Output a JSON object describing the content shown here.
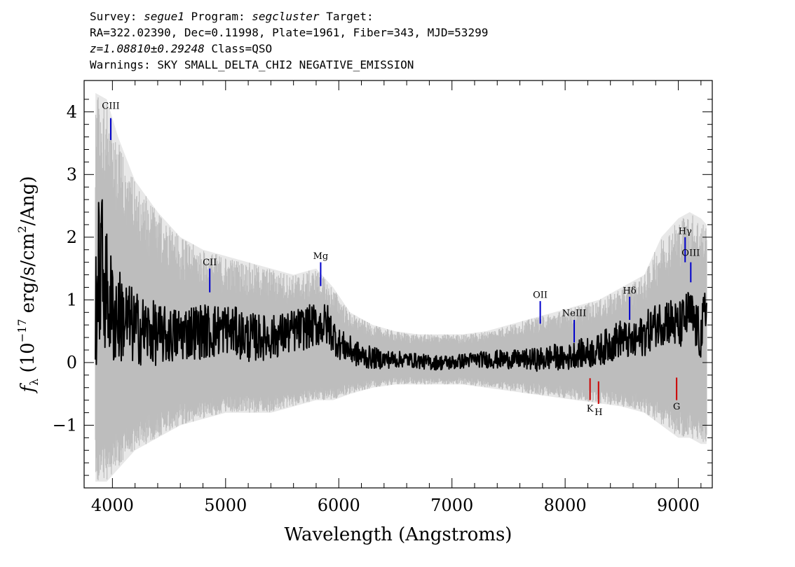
{
  "header": {
    "survey_label": "Survey:",
    "survey": "segue1",
    "program_label": "Program:",
    "program": "segcluster",
    "target_label": "Target:",
    "coords": "RA=322.02390, Dec=0.11998, Plate=1961, Fiber=343, MJD=53299",
    "redshift": "z=1.08810±0.29248",
    "class": "Class=QSO",
    "warnings": "Warnings: SKY SMALL_DELTA_CHI2 NEGATIVE_EMISSION"
  },
  "chart_data": {
    "type": "line",
    "xlabel": "Wavelength (Angstroms)",
    "ylabel": "f_λ (10^-17 erg/s/cm²/Ang)",
    "xlim": [
      3750,
      9300
    ],
    "ylim": [
      -2.0,
      4.5
    ],
    "xticks": [
      4000,
      5000,
      6000,
      7000,
      8000,
      9000
    ],
    "yticks": [
      -1,
      0,
      1,
      2,
      3,
      4
    ],
    "ytick_labels": [
      "−1",
      "0",
      "1",
      "2",
      "3",
      "4"
    ],
    "series": [
      {
        "role": "error",
        "color": "#bebebe",
        "wavelength": [
          3850,
          3950,
          4050,
          4200,
          4400,
          4600,
          4800,
          5000,
          5200,
          5400,
          5600,
          5800,
          5950,
          6100,
          6300,
          6500,
          6700,
          6900,
          7100,
          7300,
          7500,
          7700,
          7900,
          8100,
          8300,
          8500,
          8700,
          8850,
          9000,
          9100,
          9200,
          9250
        ],
        "upper": [
          4.3,
          4.2,
          3.6,
          2.9,
          2.4,
          2.0,
          1.8,
          1.7,
          1.6,
          1.5,
          1.4,
          1.5,
          1.2,
          0.8,
          0.6,
          0.5,
          0.45,
          0.45,
          0.45,
          0.5,
          0.6,
          0.7,
          0.8,
          0.9,
          1.0,
          1.2,
          1.4,
          2.0,
          2.3,
          2.4,
          2.3,
          2.2
        ],
        "lower": [
          -1.9,
          -1.9,
          -1.7,
          -1.4,
          -1.2,
          -1.0,
          -0.9,
          -0.8,
          -0.8,
          -0.8,
          -0.7,
          -0.6,
          -0.6,
          -0.5,
          -0.4,
          -0.35,
          -0.35,
          -0.35,
          -0.35,
          -0.4,
          -0.45,
          -0.5,
          -0.55,
          -0.6,
          -0.65,
          -0.7,
          -0.8,
          -1.0,
          -1.2,
          -1.2,
          -1.3,
          -1.3
        ]
      },
      {
        "role": "flux",
        "color": "#000000",
        "wavelength": [
          3850,
          3900,
          3950,
          4000,
          4100,
          4200,
          4300,
          4400,
          4500,
          4700,
          4900,
          5000,
          5200,
          5400,
          5600,
          5800,
          5900,
          6000,
          6200,
          6400,
          6600,
          6800,
          7000,
          7200,
          7400,
          7600,
          7800,
          7900,
          8000,
          8100,
          8200,
          8300,
          8400,
          8500,
          8600,
          8700,
          8800,
          8900,
          9000,
          9100,
          9200,
          9250
        ],
        "flux": [
          1.0,
          1.6,
          1.1,
          0.8,
          0.7,
          0.55,
          0.5,
          0.45,
          0.42,
          0.5,
          0.5,
          0.55,
          0.4,
          0.4,
          0.5,
          0.6,
          0.6,
          0.3,
          0.1,
          0.05,
          0.05,
          0.0,
          0.0,
          0.05,
          0.05,
          0.05,
          0.05,
          0.1,
          0.05,
          0.15,
          0.15,
          0.2,
          0.3,
          0.4,
          0.3,
          0.45,
          0.6,
          0.7,
          0.55,
          0.8,
          0.4,
          0.9
        ],
        "noise": [
          1.2,
          1.3,
          1.0,
          0.9,
          0.7,
          0.6,
          0.55,
          0.5,
          0.45,
          0.45,
          0.45,
          0.4,
          0.4,
          0.35,
          0.35,
          0.35,
          0.35,
          0.25,
          0.2,
          0.15,
          0.12,
          0.12,
          0.12,
          0.12,
          0.15,
          0.15,
          0.2,
          0.2,
          0.2,
          0.22,
          0.25,
          0.25,
          0.3,
          0.3,
          0.3,
          0.35,
          0.35,
          0.4,
          0.4,
          0.4,
          0.4,
          0.5
        ]
      }
    ],
    "line_markers": [
      {
        "label": "CIII",
        "wavelength": 3985,
        "y1": 3.55,
        "y2": 3.9,
        "color": "#0000cc",
        "label_y": 4.05
      },
      {
        "label": "CII",
        "wavelength": 4860,
        "y1": 1.12,
        "y2": 1.5,
        "color": "#0000cc",
        "label_y": 1.55
      },
      {
        "label": "Mg",
        "wavelength": 5840,
        "y1": 1.22,
        "y2": 1.6,
        "color": "#0000cc",
        "label_y": 1.65
      },
      {
        "label": "OII",
        "wavelength": 7780,
        "y1": 0.62,
        "y2": 0.98,
        "color": "#0000cc",
        "label_y": 1.03
      },
      {
        "label": "NeIII",
        "wavelength": 8080,
        "y1": 0.32,
        "y2": 0.68,
        "color": "#0000cc",
        "label_y": 0.74
      },
      {
        "label": "Hδ",
        "wavelength": 8570,
        "y1": 0.68,
        "y2": 1.05,
        "color": "#0000cc",
        "label_y": 1.1
      },
      {
        "label": "Hγ",
        "wavelength": 9060,
        "y1": 1.6,
        "y2": 2.0,
        "color": "#0000cc",
        "label_y": 2.05
      },
      {
        "label": "OIII",
        "wavelength": 9110,
        "y1": 1.28,
        "y2": 1.6,
        "color": "#0000cc",
        "label_y": 1.7
      },
      {
        "label": "K",
        "wavelength": 8220,
        "y1": -0.6,
        "y2": -0.25,
        "color": "#cc0000",
        "label_y": -0.78
      },
      {
        "label": "H",
        "wavelength": 8295,
        "y1": -0.66,
        "y2": -0.3,
        "color": "#cc0000",
        "label_y": -0.84
      },
      {
        "label": "G",
        "wavelength": 8985,
        "y1": -0.6,
        "y2": -0.24,
        "color": "#cc0000",
        "label_y": -0.75
      }
    ]
  }
}
